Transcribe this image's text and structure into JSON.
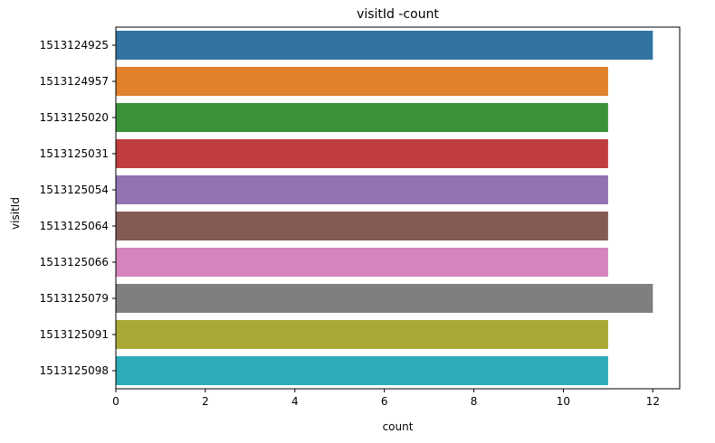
{
  "chart_data": {
    "type": "bar",
    "orientation": "horizontal",
    "title": "visitId -count",
    "xlabel": "count",
    "ylabel": "visitId",
    "xlim": [
      0,
      12.6
    ],
    "xticks": [
      0,
      2,
      4,
      6,
      8,
      10,
      12
    ],
    "grid": false,
    "categories": [
      "1513124925",
      "1513124957",
      "1513125020",
      "1513125031",
      "1513125054",
      "1513125064",
      "1513125066",
      "1513125079",
      "1513125091",
      "1513125098"
    ],
    "values": [
      12,
      11,
      11,
      11,
      11,
      11,
      11,
      12,
      11,
      11
    ],
    "colors": [
      "#3274a1",
      "#e1812c",
      "#3a923a",
      "#c03d3e",
      "#9372b2",
      "#845b53",
      "#d684bd",
      "#7f7f7f",
      "#a9aa35",
      "#2eabb8"
    ]
  }
}
